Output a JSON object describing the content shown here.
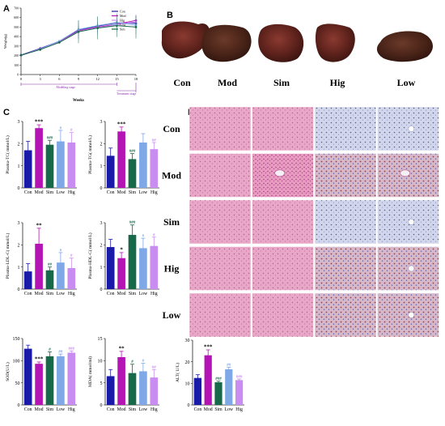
{
  "colors": {
    "Con": "#1a1aa8",
    "Mod": "#b514b5",
    "Sim": "#17694a",
    "Low": "#7fa8e6",
    "Hig": "#c98cf0"
  },
  "panels": {
    "A": "A",
    "B": "B",
    "C": "C",
    "D": "D"
  },
  "panel_b": {
    "labels": [
      "Con",
      "Mod",
      "Sim",
      "Hig",
      "Low"
    ]
  },
  "panel_d": {
    "row_labels": [
      "Con",
      "Mod",
      "Sim",
      "Hig",
      "Low"
    ],
    "columns": 4
  },
  "chart_data": [
    {
      "id": "A",
      "type": "line",
      "ylabel": "Weight(g)",
      "xlabel": "Weeks",
      "x": [
        0,
        3,
        6,
        9,
        12,
        15,
        18
      ],
      "xticks": [
        "0",
        "3",
        "6",
        "9",
        "12",
        "15",
        "18"
      ],
      "ylim": [
        0,
        700
      ],
      "yticks": [
        "0",
        "100",
        "200",
        "300",
        "400",
        "500",
        "600",
        "700"
      ],
      "annotations": [
        "Modeling stage",
        "Treatment stage"
      ],
      "series": [
        {
          "name": "Con",
          "values": [
            205,
            275,
            350,
            470,
            510,
            545,
            540
          ]
        },
        {
          "name": "Mod",
          "values": [
            203,
            270,
            345,
            460,
            500,
            530,
            570
          ]
        },
        {
          "name": "Hig",
          "values": [
            200,
            265,
            340,
            455,
            495,
            525,
            555
          ]
        },
        {
          "name": "Low",
          "values": [
            202,
            268,
            352,
            475,
            515,
            550,
            520
          ]
        },
        {
          "name": "Sim",
          "values": [
            204,
            262,
            338,
            450,
            490,
            515,
            500
          ]
        }
      ]
    },
    {
      "id": "C1",
      "type": "bar",
      "ylabel": "Plasma-TC( mmol/L)",
      "categories": [
        "Con",
        "Mod",
        "Sim",
        "Low",
        "Hig"
      ],
      "values": [
        1.7,
        2.7,
        1.95,
        2.1,
        2.05
      ],
      "errors": [
        0.4,
        0.15,
        0.2,
        0.5,
        0.45
      ],
      "ylim": [
        0,
        3
      ],
      "yticks": [
        "0",
        "1",
        "2",
        "3"
      ],
      "marks": [
        "",
        "***",
        "###",
        "#",
        "#"
      ]
    },
    {
      "id": "C2",
      "type": "bar",
      "ylabel": "Plasma-TG( mmol/L)",
      "categories": [
        "Con",
        "Mod",
        "Sim",
        "Low",
        "Hig"
      ],
      "values": [
        1.45,
        2.55,
        1.3,
        2.05,
        1.75
      ],
      "errors": [
        0.35,
        0.2,
        0.25,
        0.4,
        0.3
      ],
      "ylim": [
        0,
        3
      ],
      "yticks": [
        "0",
        "1",
        "2",
        "3"
      ],
      "marks": [
        "",
        "***",
        "###",
        "",
        "##"
      ]
    },
    {
      "id": "C3",
      "type": "bar",
      "ylabel": "Plasma-LDL-C( mmol/L)",
      "categories": [
        "Con",
        "Mod",
        "Sim",
        "Low",
        "Hig"
      ],
      "values": [
        0.8,
        2.05,
        0.85,
        1.2,
        0.95
      ],
      "errors": [
        0.35,
        0.7,
        0.15,
        0.45,
        0.45
      ],
      "ylim": [
        0,
        3
      ],
      "yticks": [
        "0",
        "1",
        "2",
        "3"
      ],
      "marks": [
        "",
        "**",
        "##",
        "#",
        "#"
      ]
    },
    {
      "id": "C4",
      "type": "bar",
      "ylabel": "Plasma-HDL-C( mmol/L)",
      "categories": [
        "Con",
        "Mod",
        "Sim",
        "Low",
        "Hig"
      ],
      "values": [
        1.9,
        1.4,
        2.45,
        1.85,
        1.95
      ],
      "errors": [
        0.35,
        0.25,
        0.45,
        0.45,
        0.4
      ],
      "ylim": [
        0,
        3
      ],
      "yticks": [
        "0",
        "1",
        "2",
        "3"
      ],
      "marks": [
        "",
        "*",
        "###",
        "#",
        "#"
      ]
    },
    {
      "id": "C5",
      "type": "bar",
      "ylabel": "SOD(U/L)",
      "categories": [
        "Con",
        "Mod",
        "Sim",
        "Low",
        "Hig"
      ],
      "values": [
        127,
        93,
        110,
        110,
        118
      ],
      "errors": [
        8,
        4,
        10,
        5,
        4
      ],
      "ylim": [
        0,
        150
      ],
      "yticks": [
        "0",
        "50",
        "100",
        "150"
      ],
      "marks": [
        "",
        "***",
        "#",
        "##",
        "###"
      ]
    },
    {
      "id": "C6",
      "type": "bar",
      "ylabel": "MDA( mmol/ml)",
      "categories": [
        "Con",
        "Mod",
        "Sim",
        "Low",
        "Hig"
      ],
      "values": [
        6.5,
        10.8,
        7.2,
        7.6,
        6.2
      ],
      "errors": [
        1.5,
        1.3,
        2.0,
        1.8,
        1.8
      ],
      "ylim": [
        0,
        15
      ],
      "yticks": [
        "0",
        "5",
        "10",
        "15"
      ],
      "marks": [
        "",
        "**",
        "#",
        "#",
        "##"
      ]
    },
    {
      "id": "C7",
      "type": "bar",
      "ylabel": "ALT( U/L)",
      "categories": [
        "Con",
        "Mod",
        "Sim",
        "Low",
        "Hig"
      ],
      "values": [
        12.5,
        23,
        10.5,
        16.5,
        11.5
      ],
      "errors": [
        1.5,
        2.5,
        0.5,
        1.0,
        0.5
      ],
      "ylim": [
        0,
        30
      ],
      "yticks": [
        "0",
        "10",
        "20",
        "30"
      ],
      "marks": [
        "",
        "***",
        "###",
        "##",
        "###"
      ]
    }
  ]
}
